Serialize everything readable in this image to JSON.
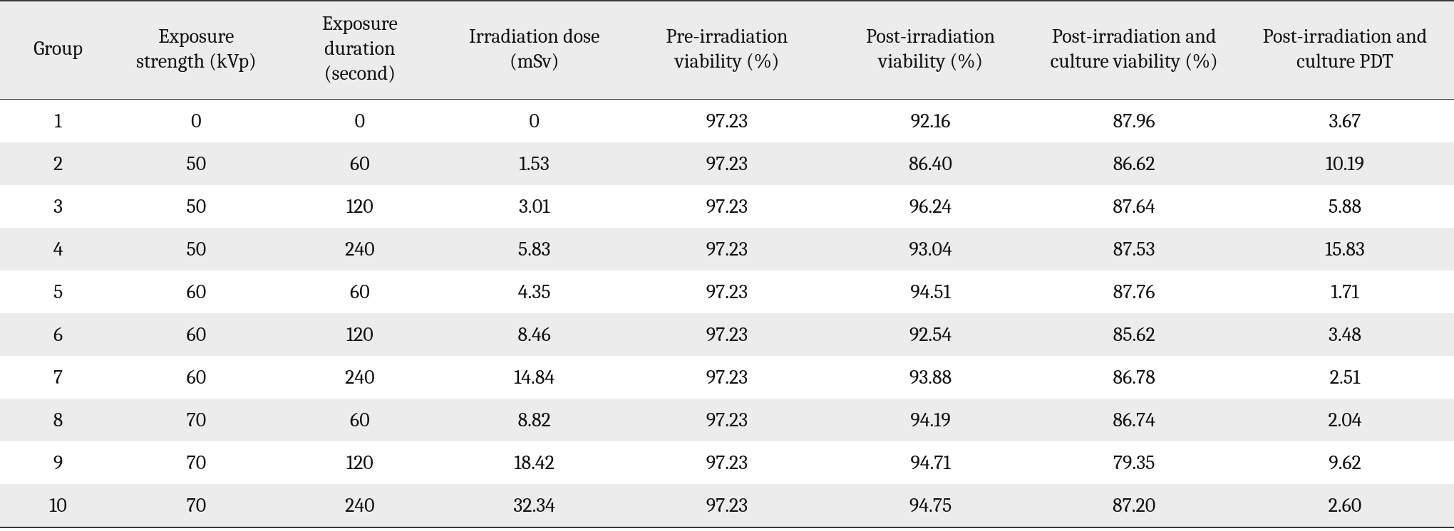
{
  "table": {
    "background_color": "#ffffff",
    "stripe_colors": [
      "#ffffff",
      "#ececec"
    ],
    "header_background": "#ececec",
    "rule_color": "#3a3a3a",
    "font_family": "Cambria / Georgia serif",
    "header_fontsize_pt": 21,
    "cell_fontsize_pt": 21,
    "column_widths_pct": [
      8.0,
      11.0,
      11.5,
      12.5,
      14.0,
      14.0,
      14.0,
      15.0
    ],
    "columns": [
      "Group",
      "Exposure strength (kVp)",
      "Exposure duration (second)",
      "Irradiation dose (mSv)",
      "Pre-irradiation viability (%)",
      "Post-irradiation viability (%)",
      "Post-irradiation and culture viability (%)",
      "Post-irradiation and culture PDT"
    ],
    "rows": [
      [
        "1",
        "0",
        "0",
        "0",
        "97.23",
        "92.16",
        "87.96",
        "3.67"
      ],
      [
        "2",
        "50",
        "60",
        "1.53",
        "97.23",
        "86.40",
        "86.62",
        "10.19"
      ],
      [
        "3",
        "50",
        "120",
        "3.01",
        "97.23",
        "96.24",
        "87.64",
        "5.88"
      ],
      [
        "4",
        "50",
        "240",
        "5.83",
        "97.23",
        "93.04",
        "87.53",
        "15.83"
      ],
      [
        "5",
        "60",
        "60",
        "4.35",
        "97.23",
        "94.51",
        "87.76",
        "1.71"
      ],
      [
        "6",
        "60",
        "120",
        "8.46",
        "97.23",
        "92.54",
        "85.62",
        "3.48"
      ],
      [
        "7",
        "60",
        "240",
        "14.84",
        "97.23",
        "93.88",
        "86.78",
        "2.51"
      ],
      [
        "8",
        "70",
        "60",
        "8.82",
        "97.23",
        "94.19",
        "86.74",
        "2.04"
      ],
      [
        "9",
        "70",
        "120",
        "18.42",
        "97.23",
        "94.71",
        "79.35",
        "9.62"
      ],
      [
        "10",
        "70",
        "240",
        "32.34",
        "97.23",
        "94.75",
        "87.20",
        "2.60"
      ]
    ]
  }
}
